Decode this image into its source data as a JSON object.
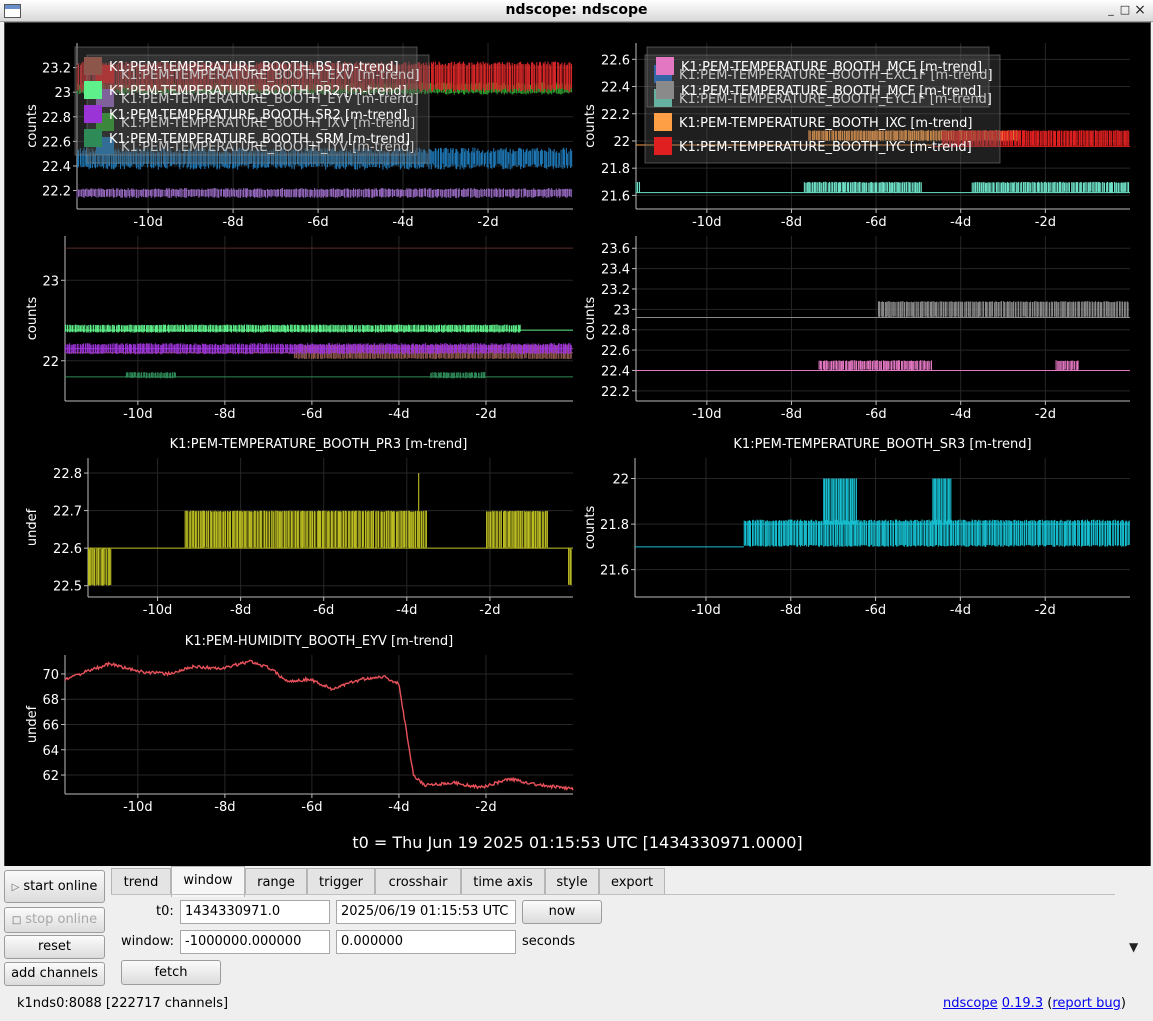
{
  "window": {
    "title": "ndscope: ndscope",
    "minimize": "_",
    "maximize": "□",
    "close": "×"
  },
  "t0_label": "t0 = Thu Jun 19 2025 01:15:53 UTC [1434330971.0000]",
  "x_ticks": [
    "-10d",
    "-8d",
    "-6d",
    "-4d",
    "-2d"
  ],
  "plots": [
    {
      "ylabel": "counts",
      "title": "",
      "yticks": [
        [
          "23.2",
          23.2
        ],
        [
          "23",
          23.0
        ],
        [
          "22.8",
          22.8
        ],
        [
          "22.6",
          22.6
        ],
        [
          "22.4",
          22.4
        ],
        [
          "22.2",
          22.2
        ]
      ],
      "ylim": [
        22.05,
        23.4
      ],
      "legend": [
        {
          "label": "K1:PEM-TEMPERATURE_BOOTH_EXV [m-trend]",
          "color": "#d62728"
        },
        {
          "label": "K1:PEM-TEMPERATURE_BOOTH_EYV [m-trend]",
          "color": "#9467bd"
        },
        {
          "label": "K1:PEM-TEMPERATURE_BOOTH_IXV [m-trend]",
          "color": "#2ca02c"
        },
        {
          "label": "K1:PEM-TEMPERATURE_BOOTH_IYV [m-trend]",
          "color": "#1f77b4"
        }
      ]
    },
    {
      "ylabel": "counts",
      "title": "",
      "yticks": [
        [
          "22.6",
          22.6
        ],
        [
          "22.4",
          22.4
        ],
        [
          "22.2",
          22.2
        ],
        [
          "22",
          22.0
        ],
        [
          "21.8",
          21.8
        ],
        [
          "21.6",
          21.6
        ]
      ],
      "ylim": [
        21.5,
        22.72
      ],
      "legend": [
        {
          "label": "K1:PEM-TEMPERATURE_BOOTH_EXC1F [m-trend]",
          "color": "#1f6ecf"
        },
        {
          "label": "K1:PEM-TEMPERATURE_BOOTH_EYC1F [m-trend]",
          "color": "#6ee2c8"
        },
        {
          "label": "K1:PEM-TEMPERATURE_BOOTH_IXC [m-trend]",
          "color": "#ff9f45"
        },
        {
          "label": "K1:PEM-TEMPERATURE_BOOTH_IYC [m-trend]",
          "color": "#e02020"
        }
      ]
    },
    {
      "ylabel": "counts",
      "title": "",
      "yticks": [
        [
          "23",
          23.0
        ],
        [
          "22",
          22.0
        ]
      ],
      "ylim": [
        21.5,
        23.55
      ],
      "legend": [
        {
          "label": "K1:PEM-TEMPERATURE_BOOTH_BS [m-trend]",
          "color": "#8c564b"
        },
        {
          "label": "K1:PEM-TEMPERATURE_BOOTH_PR2 [m-trend]",
          "color": "#5ef08a"
        },
        {
          "label": "K1:PEM-TEMPERATURE_BOOTH_SR2 [m-trend]",
          "color": "#9b34d6"
        },
        {
          "label": "K1:PEM-TEMPERATURE_BOOTH_SRM [m-trend]",
          "color": "#2e8b57"
        }
      ]
    },
    {
      "ylabel": "counts",
      "title": "",
      "yticks": [
        [
          "23.6",
          23.6
        ],
        [
          "23.4",
          23.4
        ],
        [
          "23.2",
          23.2
        ],
        [
          "23",
          23.0
        ],
        [
          "22.8",
          22.8
        ],
        [
          "22.6",
          22.6
        ],
        [
          "22.4",
          22.4
        ],
        [
          "22.2",
          22.2
        ]
      ],
      "ylim": [
        22.1,
        23.72
      ],
      "legend": [
        {
          "label": "K1:PEM-TEMPERATURE_BOOTH_MCE [m-trend]",
          "color": "#e377c2"
        },
        {
          "label": "K1:PEM-TEMPERATURE_BOOTH_MCF [m-trend]",
          "color": "#8a8a8a"
        }
      ]
    },
    {
      "ylabel": "undef",
      "title": "K1:PEM-TEMPERATURE_BOOTH_PR3 [m-trend]",
      "yticks": [
        [
          "22.8",
          22.8
        ],
        [
          "22.7",
          22.7
        ],
        [
          "22.6",
          22.6
        ],
        [
          "22.5",
          22.5
        ]
      ],
      "ylim": [
        22.47,
        22.84
      ],
      "legend": [],
      "color": "#bcbd22"
    },
    {
      "ylabel": "counts",
      "title": "K1:PEM-TEMPERATURE_BOOTH_SR3 [m-trend]",
      "yticks": [
        [
          "22",
          22.0
        ],
        [
          "21.8",
          21.8
        ],
        [
          "21.6",
          21.6
        ]
      ],
      "ylim": [
        21.48,
        22.09
      ],
      "legend": [],
      "color": "#17becf"
    },
    {
      "ylabel": "undef",
      "title": "K1:PEM-HUMIDITY_BOOTH_EYV [m-trend]",
      "yticks": [
        [
          "70",
          70
        ],
        [
          "68",
          68
        ],
        [
          "66",
          66
        ],
        [
          "64",
          64
        ],
        [
          "62",
          62
        ]
      ],
      "ylim": [
        60.5,
        71.5
      ],
      "legend": [],
      "color": "#e8515a"
    }
  ],
  "controls": {
    "start_online": "start online",
    "stop_online": "stop online",
    "reset": "reset",
    "add_channels": "add channels",
    "tabs": [
      "trend",
      "window",
      "range",
      "trigger",
      "crosshair",
      "time axis",
      "style",
      "export"
    ],
    "active_tab": "window",
    "t0_label": "t0:",
    "t0_gps": "1434330971.0",
    "t0_utc": "2025/06/19 01:15:53 UTC",
    "now": "now",
    "window_label": "window:",
    "window_start": "-1000000.000000",
    "window_end": "0.000000",
    "seconds": "seconds",
    "fetch": "fetch",
    "more_arrow": "▼"
  },
  "status": {
    "server": "k1nds0:8088  [222717 channels]",
    "ndscope_link": "ndscope",
    "version_link": "0.19.3",
    "report_link": "report bug"
  }
}
